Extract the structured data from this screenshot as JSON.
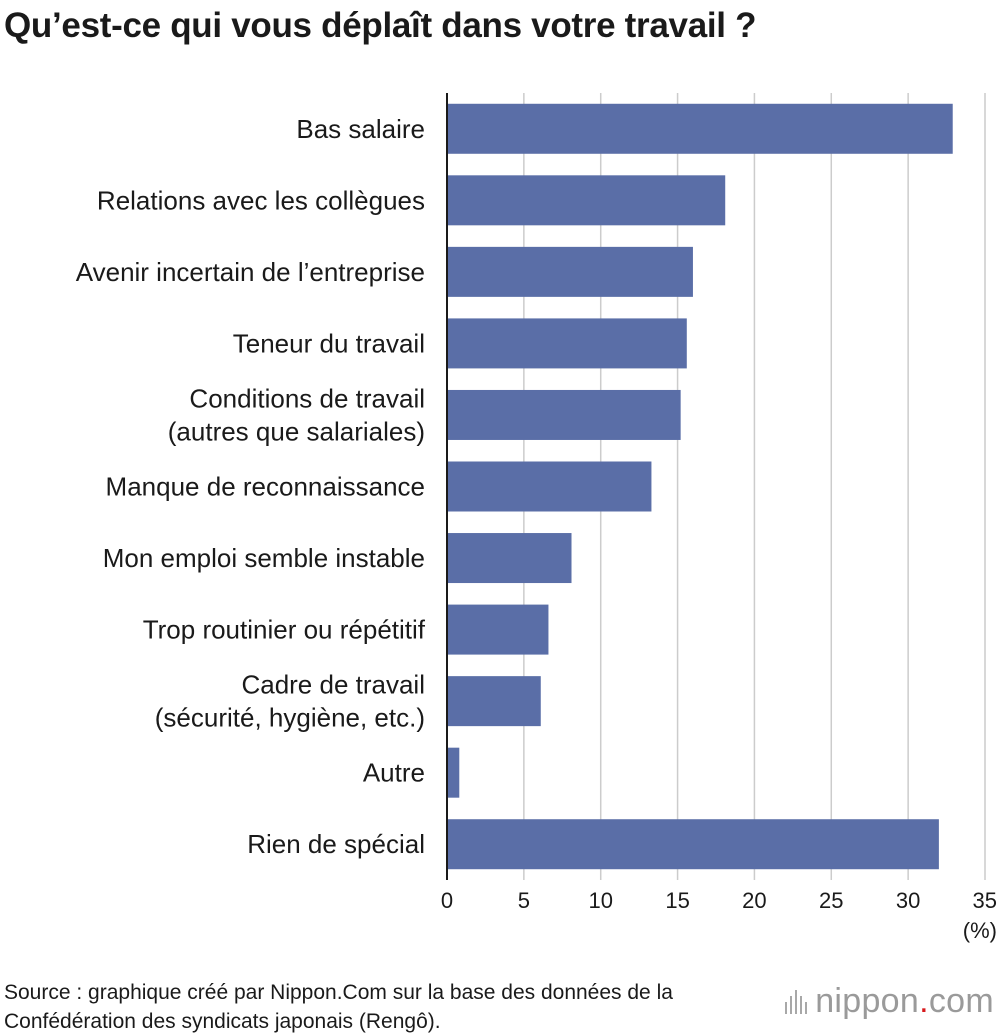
{
  "chart_data": {
    "type": "bar",
    "orientation": "horizontal",
    "title": "Qu’est-ce qui vous déplaît dans votre travail ?",
    "categories": [
      [
        "Bas salaire"
      ],
      [
        "Relations avec les collègues"
      ],
      [
        "Avenir incertain de l’entreprise"
      ],
      [
        "Teneur du travail"
      ],
      [
        "Conditions de travail",
        "(autres que salariales)"
      ],
      [
        "Manque de reconnaissance"
      ],
      [
        "Mon emploi semble instable"
      ],
      [
        "Trop routinier ou répétitif"
      ],
      [
        "Cadre de travail",
        "(sécurité, hygiène, etc.)"
      ],
      [
        "Autre"
      ],
      [
        "Rien de spécial"
      ]
    ],
    "values": [
      32.9,
      18.1,
      16.0,
      15.6,
      15.2,
      13.3,
      8.1,
      6.6,
      6.1,
      0.8,
      32.0
    ],
    "xlim": [
      0,
      35
    ],
    "xticks": [
      0,
      5,
      10,
      15,
      20,
      25,
      30,
      35
    ],
    "xunit": "(%)",
    "xlabel": "",
    "ylabel": "",
    "grid": true,
    "bar_color": "#5a6ea7",
    "grid_color": "#cccccc"
  },
  "source": {
    "text": "Source : graphique créé par Nippon.Com sur la base des données de la Confédération des syndicats japonais (Rengô)."
  },
  "logo": {
    "name": "nippon",
    "dot": ".",
    "suffix": "com",
    "dot_color": "#d7191c"
  }
}
